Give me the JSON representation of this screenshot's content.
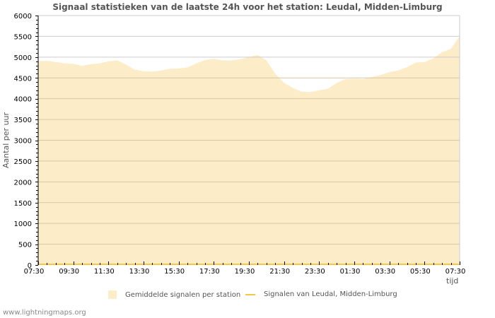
{
  "title": "Signaal statistieken van de laatste 24h voor het station: Leudal, Midden-Limburg",
  "footer": "www.lightningmaps.org",
  "legend": {
    "area_label": "Gemiddelde signalen per station",
    "line_label": "Signalen van Leudal, Midden-Limburg"
  },
  "colors": {
    "area": "#fdecc8",
    "line": "#f5c842",
    "grid": "#cccccc",
    "grid_dark": "#d8c7a6"
  },
  "chart_data": {
    "type": "area",
    "title": "Signaal statistieken van de laatste 24h voor het station: Leudal, Midden-Limburg",
    "xlabel": "tijd",
    "ylabel": "Aantal per uur",
    "ylim": [
      0,
      6000
    ],
    "yticks": [
      0,
      500,
      1000,
      1500,
      2000,
      2500,
      3000,
      3500,
      4000,
      4500,
      5000,
      5500,
      6000
    ],
    "xticks": [
      "07:30",
      "09:30",
      "11:30",
      "13:30",
      "15:30",
      "17:30",
      "19:30",
      "21:30",
      "23:30",
      "01:30",
      "03:30",
      "05:30",
      "07:30"
    ],
    "legend_position": "bottom",
    "grid": true,
    "x": [
      "07:30",
      "08:00",
      "08:30",
      "09:00",
      "09:30",
      "10:00",
      "10:30",
      "11:00",
      "11:30",
      "12:00",
      "12:30",
      "13:00",
      "13:30",
      "14:00",
      "14:30",
      "15:00",
      "15:30",
      "16:00",
      "16:30",
      "17:00",
      "17:30",
      "18:00",
      "18:30",
      "19:00",
      "19:30",
      "20:00",
      "20:30",
      "21:00",
      "21:30",
      "22:00",
      "22:30",
      "23:00",
      "23:30",
      "00:00",
      "00:30",
      "01:00",
      "01:30",
      "02:00",
      "02:30",
      "03:00",
      "03:30",
      "04:00",
      "04:30",
      "05:00",
      "05:30",
      "06:00",
      "06:30",
      "07:00",
      "07:30"
    ],
    "series": [
      {
        "name": "Gemiddelde signalen per station",
        "values": [
          4900,
          4910,
          4880,
          4850,
          4840,
          4790,
          4830,
          4850,
          4900,
          4920,
          4820,
          4700,
          4660,
          4650,
          4680,
          4720,
          4730,
          4750,
          4850,
          4930,
          4960,
          4920,
          4920,
          4950,
          5000,
          5050,
          4920,
          4600,
          4380,
          4260,
          4170,
          4160,
          4200,
          4240,
          4380,
          4470,
          4480,
          4470,
          4520,
          4570,
          4640,
          4680,
          4760,
          4870,
          4880,
          4970,
          5120,
          5200,
          5500
        ]
      },
      {
        "name": "Signalen van Leudal, Midden-Limburg",
        "values": [
          0,
          0,
          0,
          0,
          0,
          0,
          0,
          0,
          0,
          0,
          0,
          0,
          0,
          0,
          0,
          0,
          0,
          0,
          0,
          0,
          0,
          0,
          0,
          0,
          0,
          0,
          0,
          0,
          0,
          0,
          0,
          0,
          0,
          0,
          0,
          0,
          0,
          0,
          0,
          0,
          0,
          0,
          0,
          0,
          0,
          0,
          0,
          0,
          0
        ]
      }
    ]
  }
}
